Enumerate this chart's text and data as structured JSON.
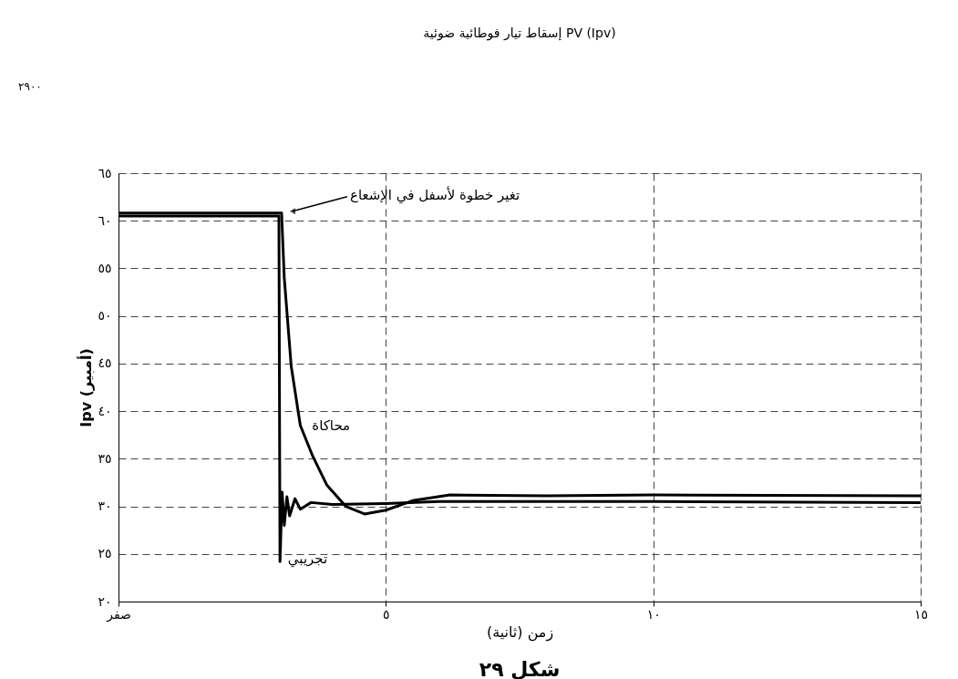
{
  "chart_data": {
    "type": "line",
    "title": "إسقاط تيار فوطائية ضوئية PV (Ipv)",
    "xlabel": "زمن (ثانية)",
    "ylabel": "Ipv (أمبير)",
    "xlim": [
      0,
      15
    ],
    "xticks": [
      {
        "value": 0,
        "label": "صفر"
      },
      {
        "value": 5,
        "label": "٥"
      },
      {
        "value": 10,
        "label": "١٠"
      },
      {
        "value": 15,
        "label": "١٥"
      }
    ],
    "ylim": [
      20,
      65
    ],
    "yticks": [
      {
        "value": 20,
        "label": "٢٠"
      },
      {
        "value": 25,
        "label": "٢٥"
      },
      {
        "value": 30,
        "label": "٣٠"
      },
      {
        "value": 35,
        "label": "٣٥"
      },
      {
        "value": 40,
        "label": "٤٠"
      },
      {
        "value": 45,
        "label": "٤٥"
      },
      {
        "value": 50,
        "label": "٥٠"
      },
      {
        "value": 55,
        "label": "٥٥"
      },
      {
        "value": 60,
        "label": "٦٠"
      },
      {
        "value": 65,
        "label": "٦٥"
      }
    ],
    "grid": true,
    "legend": false,
    "line_style": "solid",
    "series": [
      {
        "name": "محاكاة",
        "color": "#000000",
        "x": [
          0,
          3.05,
          3.1,
          3.23,
          3.4,
          3.63,
          3.9,
          4.25,
          4.6,
          5.0,
          5.5,
          6.2,
          8,
          10,
          15
        ],
        "values": [
          60.8,
          60.8,
          54,
          44.7,
          38.5,
          35.3,
          32.2,
          30,
          29.2,
          29.6,
          30.6,
          31.2,
          31.1,
          31.2,
          31.1
        ]
      },
      {
        "name": "تجريبي",
        "color": "#000000",
        "x": [
          0,
          3.0,
          3.02,
          3.06,
          3.1,
          3.15,
          3.2,
          3.3,
          3.4,
          3.6,
          4,
          5,
          6,
          10,
          15
        ],
        "values": [
          60.5,
          60.5,
          24.2,
          31.5,
          28,
          31,
          29,
          30.8,
          29.7,
          30.4,
          30.2,
          30.3,
          30.5,
          30.5,
          30.4
        ]
      }
    ],
    "annotations": [
      "تغير خطوة لأسفل في الإشعاع",
      "شكل ٢٩",
      "٢٩٠٠"
    ]
  }
}
